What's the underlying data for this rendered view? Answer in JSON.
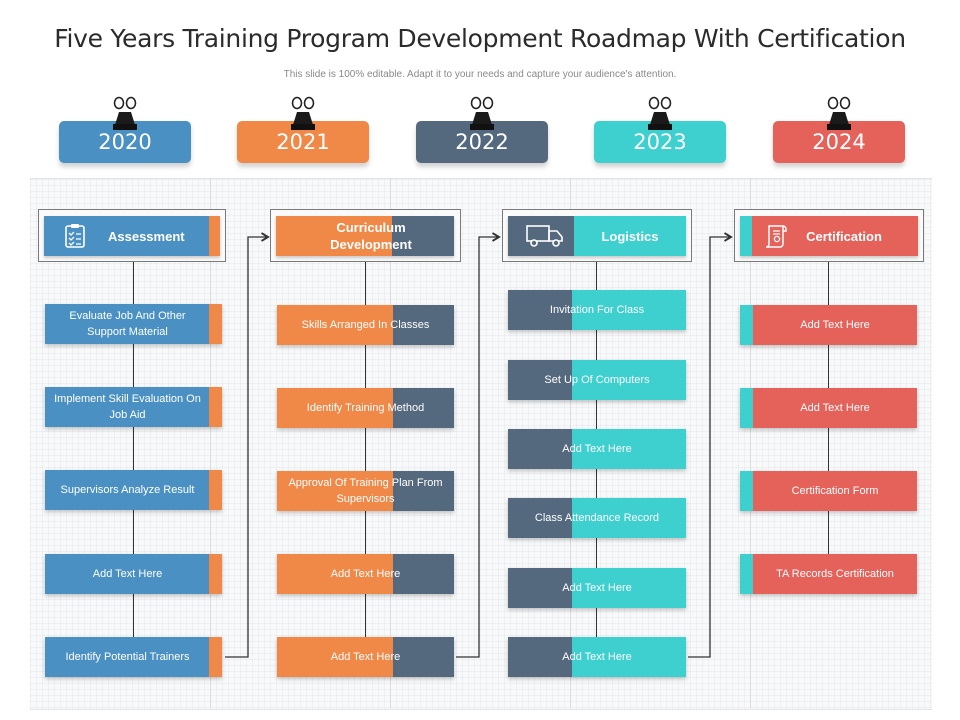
{
  "title": "Five Years Training Program Development Roadmap With Certification",
  "subtitle": "This slide is 100% editable. Adapt it to your needs and capture your audience's attention.",
  "colors": {
    "blue": "#4a90c2",
    "orange": "#f08848",
    "slate": "#55697e",
    "teal": "#3ecfcf",
    "red": "#e4625a"
  },
  "years": [
    {
      "label": "2020",
      "color": "#4a90c2"
    },
    {
      "label": "2021",
      "color": "#f08848"
    },
    {
      "label": "2022",
      "color": "#55697e"
    },
    {
      "label": "2023",
      "color": "#3ecfcf"
    },
    {
      "label": "2024",
      "color": "#e4625a"
    }
  ],
  "columns": [
    {
      "header": "Assessment",
      "icon": "clipboard-checklist-icon",
      "items": [
        "Evaluate Job And Other Support Material",
        "Implement Skill Evaluation On Job Aid",
        "Supervisors Analyze Result",
        "Add Text Here",
        "Identify Potential Trainers"
      ]
    },
    {
      "header": "Curriculum Development",
      "items": [
        "Skills Arranged In Classes",
        "Identify Training Method",
        "Approval Of Training Plan From Supervisors",
        "Add Text Here",
        "Add Text Here"
      ]
    },
    {
      "header": "Logistics",
      "icon": "delivery-truck-icon",
      "items": [
        "Invitation For Class",
        "Set Up Of Computers",
        "Add Text Here",
        "Class Attendance Record",
        "Add Text Here",
        "Add Text Here"
      ]
    },
    {
      "header": "Certification",
      "icon": "certificate-scroll-icon",
      "items": [
        "Add Text Here",
        "Add Text Here",
        "Certification Form",
        "TA Records Certification"
      ]
    }
  ]
}
